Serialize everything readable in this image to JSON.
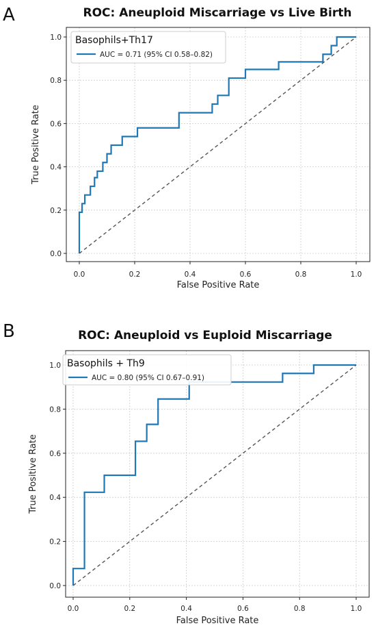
{
  "chart_data": [
    {
      "type": "line",
      "panel_label": "A",
      "title": "ROC: Aneuploid Miscarriage vs Live Birth",
      "xlabel": "False Positive Rate",
      "ylabel": "True Positive Rate",
      "xlim": [
        0.0,
        1.0
      ],
      "ylim": [
        0.0,
        1.0
      ],
      "xticks": [
        "0.0",
        "0.2",
        "0.4",
        "0.6",
        "0.8",
        "1.0"
      ],
      "yticks": [
        "0.0",
        "0.2",
        "0.4",
        "0.6",
        "0.8",
        "1.0"
      ],
      "grid": true,
      "legend_title": "Basophils+Th17",
      "legend_position": "top-left",
      "series": [
        {
          "name": "AUC = 0.71 (95% CI 0.58–0.82)",
          "color": "#1f77b4",
          "step": true,
          "x": [
            0.0,
            0.0,
            0.01,
            0.02,
            0.03,
            0.04,
            0.05,
            0.055,
            0.065,
            0.085,
            0.1,
            0.115,
            0.135,
            0.155,
            0.21,
            0.36,
            0.46,
            0.48,
            0.5,
            0.54,
            0.6,
            0.72,
            0.86,
            0.88,
            0.91,
            0.93,
            1.0
          ],
          "y": [
            0.0,
            0.19,
            0.23,
            0.27,
            0.27,
            0.31,
            0.31,
            0.35,
            0.38,
            0.42,
            0.46,
            0.5,
            0.5,
            0.54,
            0.58,
            0.65,
            0.65,
            0.69,
            0.73,
            0.81,
            0.85,
            0.885,
            0.885,
            0.92,
            0.96,
            1.0,
            1.0
          ]
        },
        {
          "name": "",
          "color": "#555555",
          "dashed": true,
          "x": [
            0.0,
            1.0
          ],
          "y": [
            0.0,
            1.0
          ]
        }
      ]
    },
    {
      "type": "line",
      "panel_label": "B",
      "title": "ROC: Aneuploid vs Euploid Miscarriage",
      "xlabel": "False Positive Rate",
      "ylabel": "True Positive Rate",
      "xlim": [
        0.0,
        1.0
      ],
      "ylim": [
        0.0,
        1.0
      ],
      "xticks": [
        "0.0",
        "0.2",
        "0.4",
        "0.6",
        "0.8",
        "1.0"
      ],
      "yticks": [
        "0.0",
        "0.2",
        "0.4",
        "0.6",
        "0.8",
        "1.0"
      ],
      "grid": true,
      "legend_title": "Basophils + Th9",
      "legend_position": "top-left",
      "series": [
        {
          "name": "AUC = 0.80 (95% CI 0.67–0.91)",
          "color": "#1f77b4",
          "step": true,
          "x": [
            0.0,
            0.0,
            0.04,
            0.11,
            0.22,
            0.26,
            0.3,
            0.41,
            0.74,
            0.85,
            1.0
          ],
          "y": [
            0.0,
            0.077,
            0.423,
            0.5,
            0.654,
            0.731,
            0.846,
            0.923,
            0.962,
            1.0,
            1.0
          ]
        },
        {
          "name": "",
          "color": "#555555",
          "dashed": true,
          "x": [
            0.0,
            1.0
          ],
          "y": [
            0.0,
            1.0
          ]
        }
      ]
    }
  ]
}
